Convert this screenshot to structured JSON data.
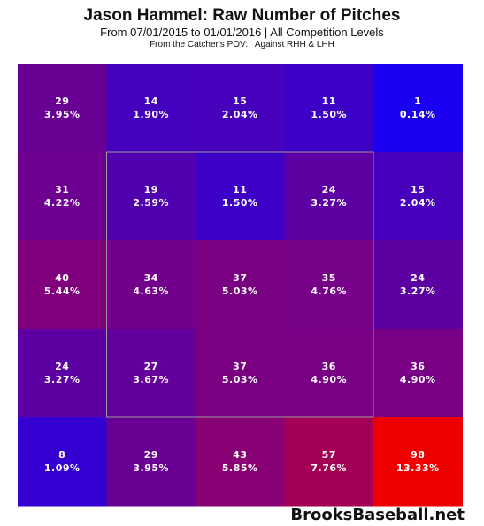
{
  "header": {
    "title": "Jason Hammel: Raw Number of Pitches",
    "subtitle": "From 07/01/2015 to 01/01/2016 | All Competition Levels",
    "pov": "From the Catcher's POV:   Against RHH & LHH"
  },
  "watermark": "BrooksBaseball.net",
  "chart_data": {
    "type": "heatmap",
    "title": "Jason Hammel: Raw Number of Pitches",
    "rows": 5,
    "cols": 5,
    "counts": [
      [
        29,
        14,
        15,
        11,
        1
      ],
      [
        31,
        19,
        11,
        24,
        15
      ],
      [
        40,
        34,
        37,
        35,
        24
      ],
      [
        24,
        27,
        37,
        36,
        36
      ],
      [
        8,
        29,
        43,
        57,
        98
      ]
    ],
    "percents": [
      [
        "3.95%",
        "1.90%",
        "2.04%",
        "1.50%",
        "0.14%"
      ],
      [
        "4.22%",
        "2.59%",
        "1.50%",
        "3.27%",
        "2.04%"
      ],
      [
        "5.44%",
        "4.63%",
        "5.03%",
        "4.76%",
        "3.27%"
      ],
      [
        "3.27%",
        "3.67%",
        "5.03%",
        "4.90%",
        "4.90%"
      ],
      [
        "1.09%",
        "3.95%",
        "5.85%",
        "7.76%",
        "13.33%"
      ]
    ],
    "strike_zone": {
      "rows": [
        1,
        3
      ],
      "cols": [
        1,
        3
      ]
    },
    "color_low": "#1a00ee",
    "color_high": "#ee0000"
  }
}
